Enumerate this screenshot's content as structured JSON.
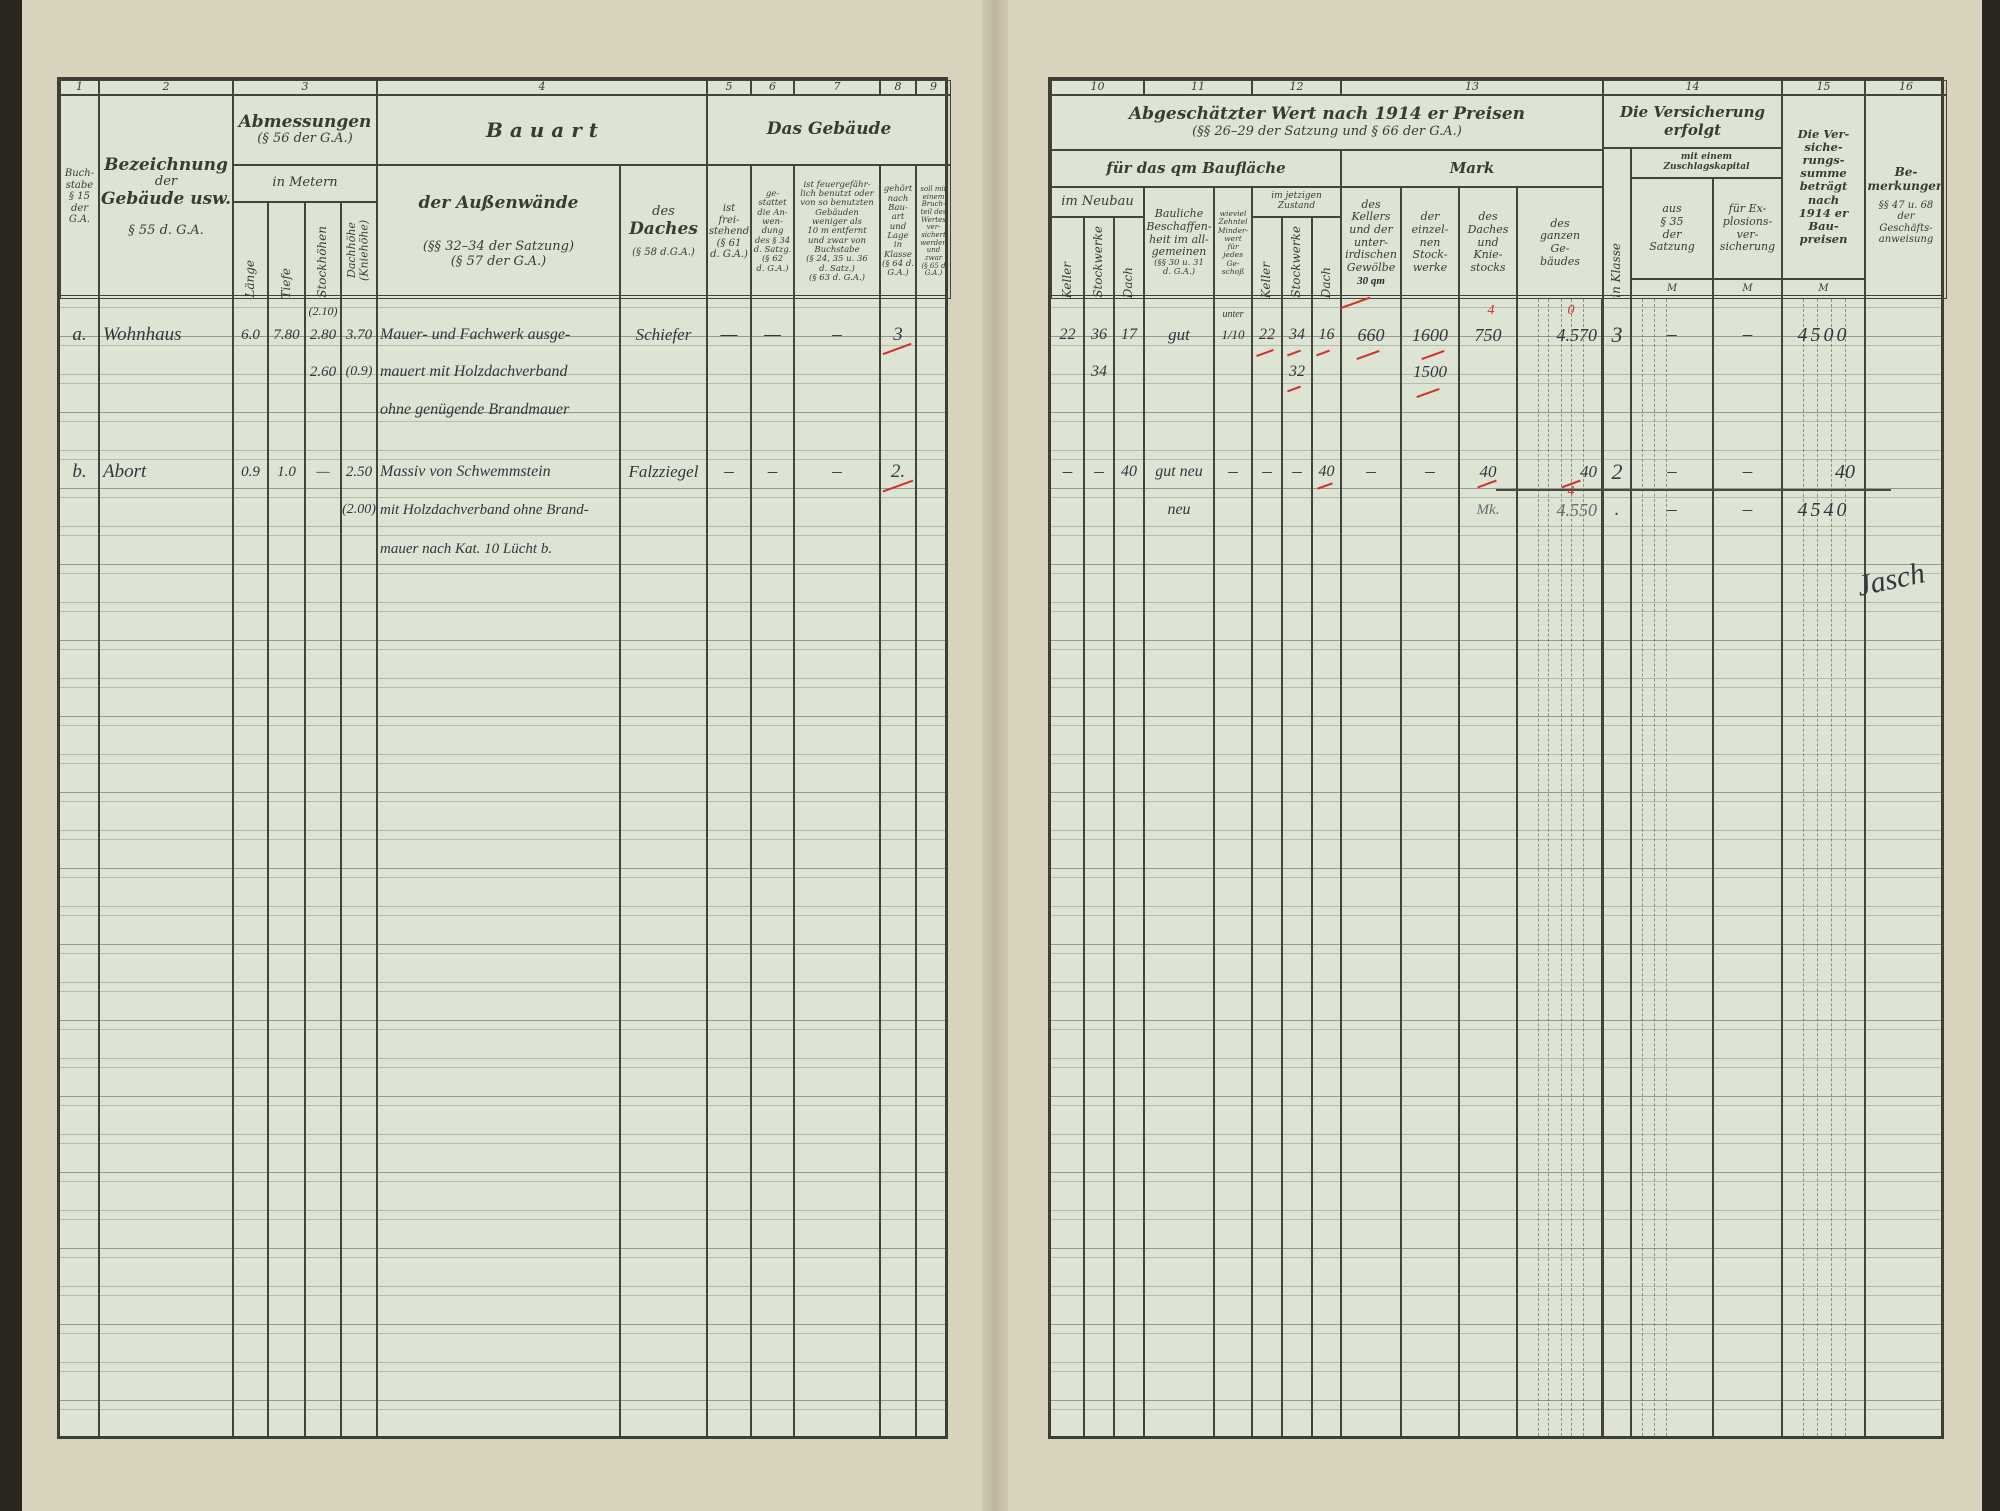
{
  "left_page": {
    "column_numbers": [
      "1",
      "2",
      "3",
      "4",
      "5",
      "6",
      "7",
      "8",
      "9"
    ],
    "col1": {
      "line1": "Buch-",
      "line2": "stabe",
      "line3": "§ 15",
      "line4": "der",
      "line5": "G.A."
    },
    "col2": {
      "title": "Bezeichnung",
      "line2": "der",
      "line3": "Gebäude usw.",
      "ref": "§ 55 d. G.A."
    },
    "col3": {
      "title": "Abmessungen",
      "ref": "(§ 56 der G.A.)",
      "unit": "in Metern",
      "sub": [
        "Länge",
        "Tiefe",
        "Stockhöhen",
        "Dachhöhe (Kniehöhe)"
      ]
    },
    "col4": {
      "title": "B a u a r t",
      "walls": "der Außenwände",
      "walls_ref1": "(§§ 32–34 der Satzung)",
      "walls_ref2": "(§ 57 der G.A.)",
      "roof1": "des",
      "roof2": "Daches",
      "roof_ref": "(§ 58 d.G.A.)"
    },
    "gebaeude": {
      "title": "Das Gebäude",
      "c5": [
        "ist",
        "frei-",
        "stehend",
        "(§ 61",
        "d. G.A.)"
      ],
      "c6": [
        "ge-",
        "stattet",
        "die An-",
        "wen-",
        "dung",
        "des § 34",
        "d. Satzg.",
        "(§ 62",
        "d. G.A.)"
      ],
      "c7": [
        "ist feuergefähr-",
        "lich benutzt oder",
        "von so benutzten",
        "Gebäuden",
        "weniger als",
        "10 m entfernt",
        "und zwar von",
        "Buchstabe",
        "(§ 24, 35 u. 36",
        "d. Satz.)",
        "(§ 63 d. G.A.)"
      ],
      "c8": [
        "gehört",
        "nach",
        "Bau-",
        "art",
        "und",
        "Lage",
        "in",
        "Klasse",
        "(§ 64 d.",
        "G.A.)"
      ],
      "c9": [
        "soll mit",
        "einem",
        "Bruch-",
        "teil des",
        "Wertes",
        "ver-",
        "sichert",
        "werden",
        "und",
        "zwar",
        "(§ 65 d",
        "G.A.)"
      ]
    },
    "rows": [
      {
        "letter": "a.",
        "name": "Wohnhaus",
        "laenge": "6.0",
        "tiefe": "7.80",
        "stock_above": "(2.10)",
        "stock": "2.80",
        "stock2": "2.60",
        "dach": "3.70",
        "dach2": "(0.9)",
        "walls": [
          "Mauer- und Fachwerk ausge-",
          "mauert mit Holzdachverband",
          "ohne genügende Brandmauer"
        ],
        "roof": "Schiefer",
        "c5": "—",
        "c6": "—",
        "c7": "–",
        "c8": "3"
      },
      {
        "letter": "b.",
        "name": "Abort",
        "laenge": "0.9",
        "tiefe": "1.0",
        "stock": "—",
        "dach": "2.50",
        "dach2": "(2.00)",
        "walls": [
          "Massiv von Schwemmstein",
          "mit Holzdachverband ohne Brand-",
          "mauer nach Kat. 10 Lücht b."
        ],
        "roof": "Falzziegel",
        "c5": "–",
        "c6": "–",
        "c7": "–",
        "c8": "2."
      }
    ]
  },
  "right_page": {
    "column_numbers": [
      "10",
      "11",
      "12",
      "13",
      "14",
      "15",
      "16"
    ],
    "title": "Abgeschätzter Wert nach 1914 er Preisen",
    "title_ref": "(§§ 26–29 der Satzung und § 66 der G.A.)",
    "qm": "für das qm Baufläche",
    "mark": "Mark",
    "neubau": "im Neubau",
    "neubau_sub": [
      "Keller",
      "Stockwerke",
      "Dach"
    ],
    "bauliche": [
      "Bauliche",
      "Beschaffen-",
      "heit im all-",
      "gemeinen",
      "(§§ 30 u. 31",
      "d. G.A.)"
    ],
    "wieviel": [
      "wieviel",
      "Zehntel",
      "Minder-",
      "wert",
      "für",
      "jedes",
      "Ge-",
      "schoß"
    ],
    "jetzt": "im jetzigen Zustand",
    "jetzt_sub": [
      "Keller",
      "Stockwerke",
      "Dach"
    ],
    "m_keller": [
      "des",
      "Kellers",
      "und der",
      "unter-",
      "irdischen",
      "Gewölbe"
    ],
    "m_keller_note": "30 qm",
    "m_stock": [
      "der",
      "einzel-",
      "nen",
      "Stock-",
      "werke"
    ],
    "m_dach": [
      "des",
      "Daches",
      "und",
      "Knie-",
      "stocks"
    ],
    "m_ganz": [
      "des",
      "ganzen",
      "Ge-",
      "bäudes"
    ],
    "vers_title": "Die Versicherung erfolgt",
    "klasse": "in Klasse",
    "zuschlag": "mit einem Zuschlagskapital",
    "aus": [
      "aus",
      "§ 35",
      "der",
      "Satzung"
    ],
    "expl": [
      "für Ex-",
      "plosions-",
      "ver-",
      "sicherung"
    ],
    "summe": [
      "Die Ver-",
      "siche-",
      "rungs-",
      "summe",
      "beträgt",
      "nach",
      "1914 er",
      "Bau-",
      "preisen"
    ],
    "currency": "M",
    "bem": [
      "Be-",
      "merkungen",
      "§§ 47 u. 68",
      "der",
      "Geschäfts-",
      "anweisung"
    ],
    "rows": [
      {
        "nk": "22",
        "ns": "36",
        "ns2": "34",
        "nd": "17",
        "baul": "gut",
        "wieviel_above": "unter",
        "wieviel": "1/10",
        "jk": "22",
        "js": "34",
        "js2": "32",
        "jd": "16",
        "mk": "660",
        "ms": "1600",
        "ms2": "1500",
        "md": "750",
        "md_corr": "4",
        "mg": "4.570",
        "mg_corr": "0",
        "klasse": "3",
        "aus": "–",
        "expl": "–",
        "summe": "4500"
      },
      {
        "nk": "–",
        "ns": "–",
        "nd": "40",
        "baul": "gut neu",
        "baul2": "neu",
        "wieviel": "–",
        "jk": "–",
        "js": "–",
        "jd": "40",
        "mk": "–",
        "ms": "–",
        "md": "40",
        "md2": "Mk.",
        "mg": "40",
        "mg2": "4.550",
        "mg2_corr": "4",
        "klasse": "2",
        "klasse2": ".",
        "aus": "–",
        "expl": "–",
        "aus2": "–",
        "expl2": "–",
        "summe": "40",
        "summe2": "4540"
      }
    ],
    "signature": "Jasch"
  },
  "colors": {
    "paper": "#dde4d3",
    "ink": "#33353f",
    "red_ink": "#d0302a",
    "rule": "#44443e"
  }
}
